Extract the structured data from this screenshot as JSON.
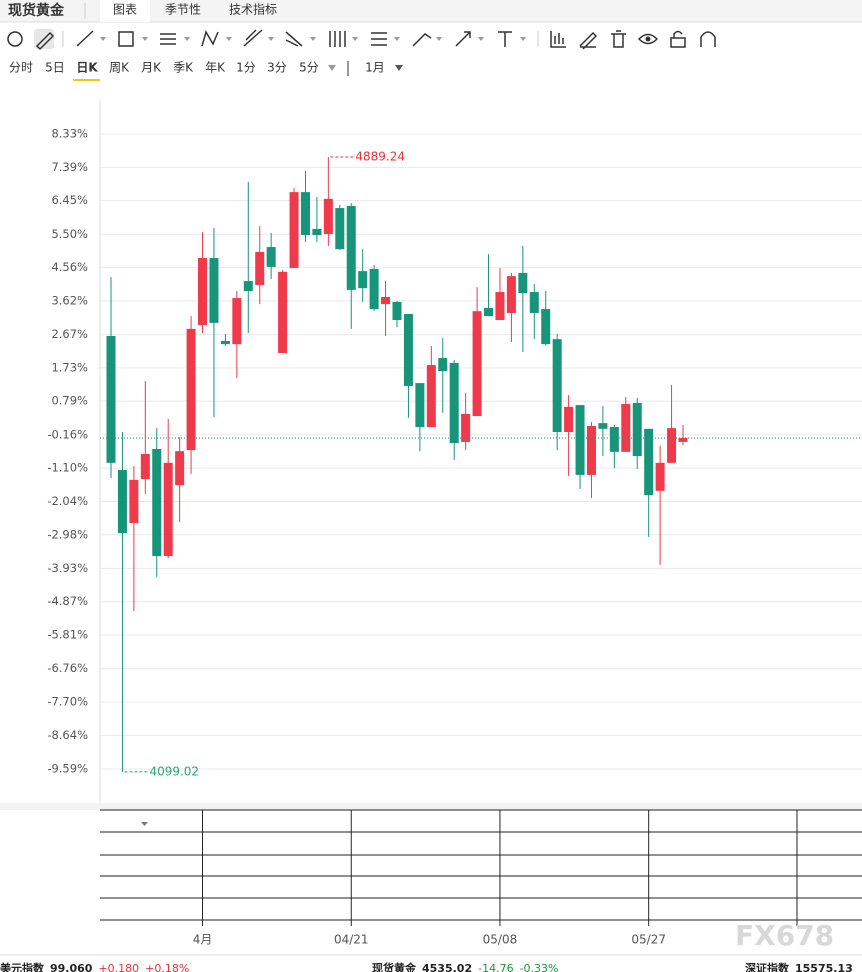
{
  "header": {
    "title": "现货黄金",
    "tabs": [
      "图表",
      "季节性",
      "技术指标"
    ]
  },
  "periods": [
    "分时",
    "5日",
    "日K",
    "周K",
    "月K",
    "季K",
    "年K",
    "1分",
    "3分",
    "5分"
  ],
  "range": "1月",
  "chart_data": {
    "type": "candlestick",
    "categories": [
      null,
      null,
      null,
      null,
      null,
      null,
      null,
      null,
      "4月",
      null,
      null,
      null,
      null,
      null,
      null,
      null,
      null,
      null,
      null,
      null,
      null,
      "04/21",
      null,
      null,
      null,
      null,
      null,
      null,
      null,
      null,
      null,
      null,
      null,
      null,
      "05/08",
      null,
      null,
      null,
      null,
      null,
      null,
      null,
      null,
      null,
      null,
      null,
      null,
      "05/27",
      null,
      null,
      null
    ],
    "open": [
      2.63,
      -1.15,
      -2.65,
      -1.41,
      -0.56,
      -3.58,
      -1.58,
      -0.59,
      2.94,
      4.83,
      2.49,
      2.4,
      4.18,
      4.07,
      5.14,
      2.15,
      4.55,
      6.69,
      5.65,
      5.51,
      6.24,
      6.3,
      4.46,
      4.52,
      3.53,
      3.59,
      3.25,
      1.3,
      0.06,
      2.01,
      1.87,
      -0.36,
      0.37,
      3.42,
      3.08,
      3.28,
      4.41,
      3.87,
      3.39,
      2.54,
      -0.08,
      0.68,
      -1.29,
      0.17,
      0.06,
      -0.64,
      0.74,
      0.01,
      -1.74,
      -0.95,
      -0.36
    ],
    "high": [
      4.29,
      -0.08,
      -1.04,
      1.36,
      0.03,
      0.29,
      -0.22,
      3.19,
      5.56,
      5.68,
      2.69,
      3.9,
      6.98,
      5.73,
      5.54,
      4.49,
      6.81,
      7.29,
      6.55,
      7.68,
      6.33,
      6.38,
      5.08,
      4.63,
      4.18,
      3.62,
      3.25,
      1.3,
      2.35,
      2.57,
      1.95,
      1.02,
      4.01,
      4.94,
      4.55,
      4.41,
      5.17,
      4.1,
      3.9,
      2.69,
      0.96,
      0.68,
      0.2,
      0.65,
      0.12,
      0.91,
      0.88,
      0.01,
      -0.47,
      1.25,
      0.12
    ],
    "low": [
      -1.38,
      -9.67,
      -5.13,
      -1.83,
      -4.17,
      -3.64,
      -2.62,
      -1.26,
      2.71,
      0.34,
      2.35,
      1.44,
      2.71,
      3.53,
      4.24,
      2.15,
      4.55,
      5.28,
      5.28,
      5.17,
      5.06,
      2.83,
      3.59,
      3.34,
      2.63,
      2.88,
      0.32,
      -0.62,
      0.06,
      0.46,
      -0.87,
      -0.59,
      0.37,
      3.19,
      3.08,
      2.46,
      2.18,
      2.54,
      2.37,
      -0.59,
      -1.32,
      -1.69,
      -1.94,
      -0.76,
      -1.1,
      -0.64,
      -1.12,
      -3.04,
      -3.83,
      -0.95,
      -0.45
    ],
    "close": [
      -0.95,
      -2.93,
      -1.43,
      -0.7,
      -3.58,
      -0.95,
      -0.62,
      2.83,
      4.83,
      3.0,
      2.4,
      3.7,
      3.9,
      5.0,
      4.58,
      4.44,
      6.69,
      5.48,
      5.48,
      6.5,
      5.08,
      3.93,
      3.98,
      3.39,
      3.73,
      3.08,
      1.22,
      0.06,
      1.81,
      1.64,
      -0.39,
      0.43,
      3.33,
      3.19,
      3.87,
      4.32,
      3.84,
      3.28,
      2.4,
      -0.08,
      0.63,
      -1.29,
      0.09,
      0.01,
      -0.64,
      0.71,
      -0.76,
      -1.86,
      -0.95,
      0.03,
      -0.25
    ],
    "up_color": "#ef3a4c",
    "down_color": "#16957a",
    "ylim": [
      -10.55,
      9.29
    ],
    "yticks": [
      {
        "value": 8.33,
        "label": "8.33%"
      },
      {
        "value": 7.39,
        "label": "7.39%"
      },
      {
        "value": 6.45,
        "label": "6.45%"
      },
      {
        "value": 5.5,
        "label": "5.50%"
      },
      {
        "value": 4.56,
        "label": "4.56%"
      },
      {
        "value": 3.62,
        "label": "3.62%"
      },
      {
        "value": 2.67,
        "label": "2.67%"
      },
      {
        "value": 1.73,
        "label": "1.73%"
      },
      {
        "value": 0.79,
        "label": "0.79%"
      },
      {
        "value": -0.16,
        "label": "-0.16%"
      },
      {
        "value": -1.1,
        "label": "-1.10%"
      },
      {
        "value": -2.04,
        "label": "-2.04%"
      },
      {
        "value": -2.98,
        "label": "-2.98%"
      },
      {
        "value": -3.93,
        "label": "-3.93%"
      },
      {
        "value": -4.87,
        "label": "-4.87%"
      },
      {
        "value": -5.81,
        "label": "-5.81%"
      },
      {
        "value": -6.76,
        "label": "-6.76%"
      },
      {
        "value": -7.7,
        "label": "-7.70%"
      },
      {
        "value": -8.64,
        "label": "-8.64%"
      },
      {
        "value": -9.59,
        "label": "-9.59%"
      }
    ],
    "grid": true,
    "annotations": [
      {
        "text": "4889.24",
        "color": "#e8323c"
      },
      {
        "text": "4099.02",
        "color": "#2aa876"
      }
    ]
  },
  "ticker": [
    {
      "name": "美元指数",
      "price": "99.060",
      "change": "+0.180",
      "pct": "+0.18%"
    },
    {
      "name": "现货黄金",
      "price": "4535.02",
      "change": "-14.76",
      "pct": "-0.33%"
    },
    {
      "name": "深证指数",
      "price": "15575.13"
    }
  ],
  "watermark": "FX678"
}
